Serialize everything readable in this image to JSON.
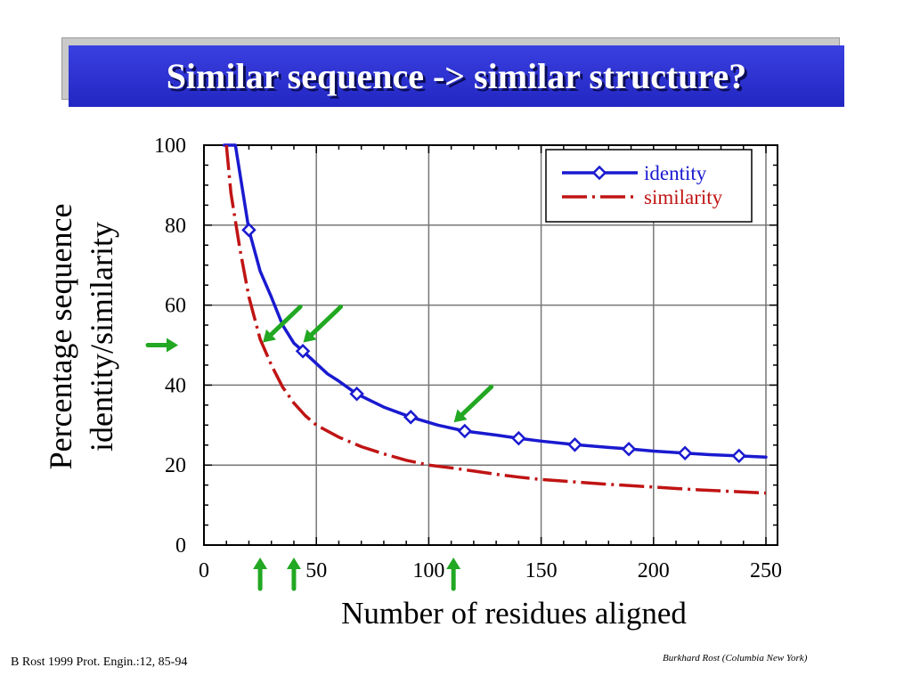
{
  "slide": {
    "title": "Similar sequence -> similar structure?",
    "footer_left": "B Rost 1999 Prot. Engin.:12, 85-94",
    "footer_right": "Burkhard Rost (Columbia New York)"
  },
  "colors": {
    "title_bar": "#2a2fce",
    "identity": "#1a1ad0",
    "similarity": "#c01414",
    "arrows": "#22a822",
    "grid": "#777777"
  },
  "chart_data": {
    "type": "line",
    "title": "",
    "xlabel": "Number of residues aligned",
    "ylabel": [
      "Percentage sequence",
      "identity/similarity"
    ],
    "xlim": [
      0,
      250
    ],
    "ylim": [
      0,
      100
    ],
    "xticks": [
      0,
      50,
      100,
      150,
      200,
      250
    ],
    "xtick_labels": [
      "0",
      "50",
      "100",
      "150",
      "200",
      "250"
    ],
    "yticks": [
      0,
      20,
      40,
      60,
      80,
      100
    ],
    "ytick_labels": [
      "0",
      "20",
      "40",
      "60",
      "80",
      "100"
    ],
    "grid": true,
    "legend_position": "top-right",
    "series": [
      {
        "name": "identity",
        "color": "#1a1ad0",
        "style": "solid",
        "x": [
          9,
          14,
          20,
          25,
          30,
          35,
          40,
          44,
          50,
          55,
          60,
          68,
          80,
          92,
          104,
          116,
          130,
          140,
          150,
          165,
          180,
          190,
          200,
          214,
          225,
          238,
          250
        ],
        "y": [
          100,
          100,
          78.8,
          68.5,
          62,
          55,
          50.5,
          48.5,
          45.4,
          42.8,
          41,
          37.8,
          34.5,
          32,
          30,
          28.5,
          27.5,
          26.7,
          26,
          25.1,
          24.4,
          24,
          23.5,
          23,
          22.6,
          22.3,
          22
        ],
        "markers_x": [
          20,
          44,
          68,
          92,
          116,
          140,
          165,
          189,
          214,
          238
        ],
        "markers_y": [
          78.8,
          48.5,
          37.8,
          32,
          28.5,
          26.7,
          25.1,
          24,
          23,
          22.3
        ]
      },
      {
        "name": "similarity",
        "color": "#c01414",
        "style": "dash-dot",
        "x": [
          10,
          12,
          16,
          20,
          25,
          30,
          35,
          40,
          45,
          50,
          60,
          70,
          80,
          90,
          100,
          110,
          120,
          130,
          140,
          150,
          165,
          180,
          200,
          220,
          235,
          250
        ],
        "y": [
          100,
          88,
          74,
          62,
          51.5,
          45,
          39.5,
          35.5,
          32.4,
          30,
          27,
          24.6,
          22.8,
          21.2,
          20,
          19.3,
          18.5,
          17.7,
          17,
          16.4,
          15.8,
          15.2,
          14.5,
          13.8,
          13.4,
          13
        ]
      }
    ],
    "annotations": {
      "left_arrow_y": 50,
      "diagonal_arrow_targets": [
        {
          "x": 25,
          "y": 50
        },
        {
          "x": 43,
          "y": 50
        },
        {
          "x": 110,
          "y": 30
        }
      ],
      "up_arrow_x": [
        25,
        40,
        111
      ]
    }
  }
}
